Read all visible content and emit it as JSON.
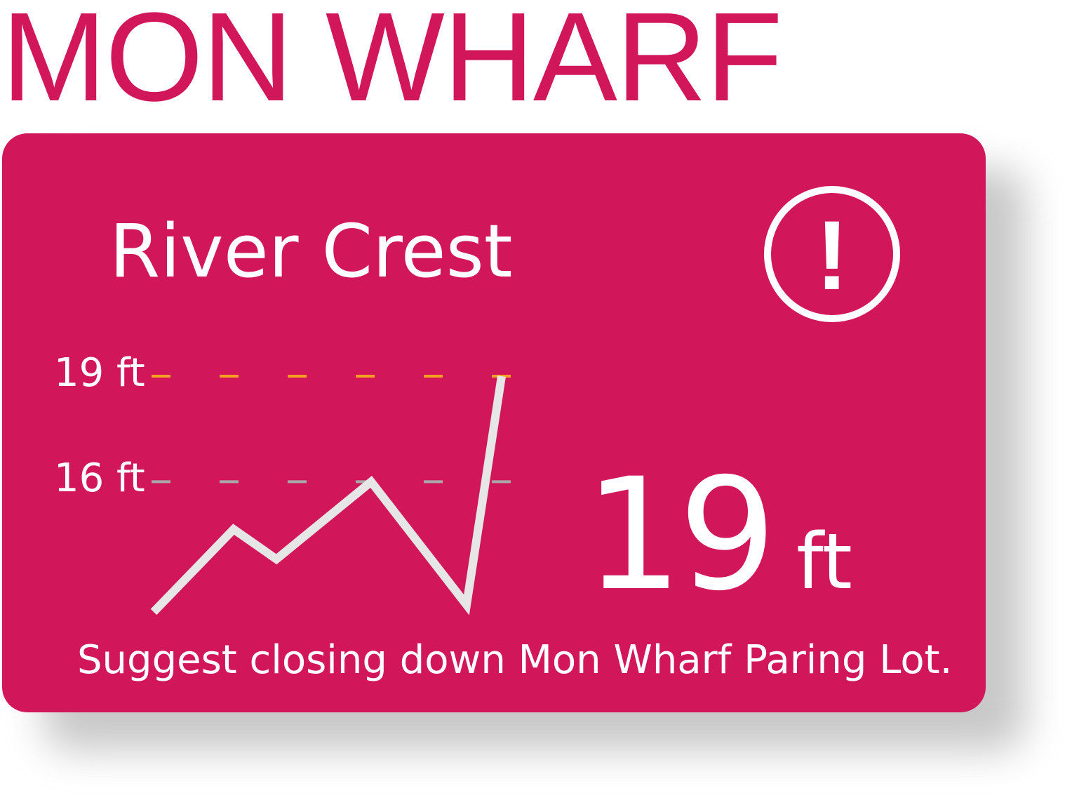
{
  "page": {
    "title": "MON WHARF"
  },
  "card": {
    "heading": "River Crest",
    "alert_icon": "exclamation-circle-icon",
    "alert_glyph": "!",
    "current_value": "19",
    "current_unit": "ft",
    "suggestion": "Suggest closing down Mon Wharf Paring Lot."
  },
  "colors": {
    "brand": "#d2165a",
    "text": "#ffffff",
    "line": "#e6e6e6",
    "warning_threshold": "#f5a020",
    "reference_threshold": "#a9a9a9"
  },
  "chart_data": {
    "type": "line",
    "y_unit": "ft",
    "ylim": [
      12,
      19
    ],
    "yticks": [
      {
        "value": 19,
        "label": "19 ft"
      },
      {
        "value": 16,
        "label": "16 ft"
      }
    ],
    "thresholds": [
      {
        "value": 19,
        "color": "#f5a020",
        "style": "dashed"
      },
      {
        "value": 16,
        "color": "#a9a9a9",
        "style": "dashed"
      }
    ],
    "series": [
      {
        "values": [
          12.3,
          14.65,
          13.8,
          16.0,
          12.5,
          19.0
        ]
      }
    ],
    "grid": false,
    "legend": "none"
  }
}
